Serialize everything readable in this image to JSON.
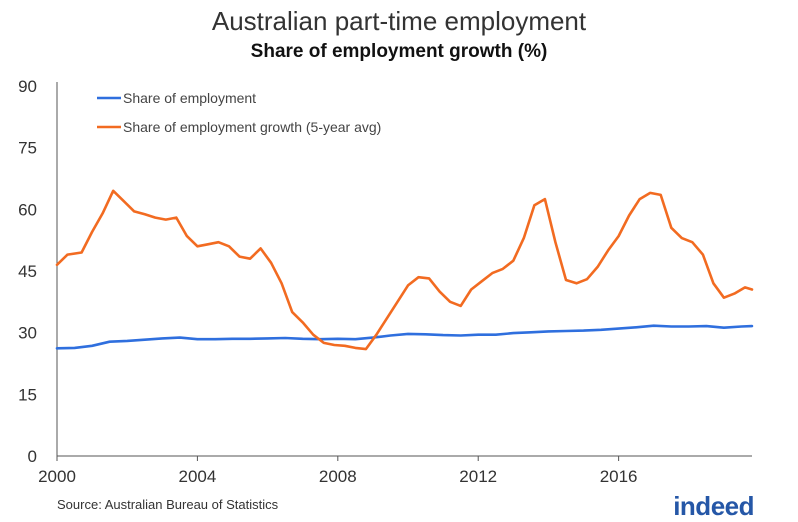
{
  "chart_data": {
    "type": "line",
    "title": "Australian part-time employment",
    "subtitle": "Share of employment growth (%)",
    "xlabel": "",
    "ylabel": "",
    "xlim": [
      2000,
      2019.8
    ],
    "ylim": [
      0,
      90
    ],
    "x_ticks": [
      2000,
      2004,
      2008,
      2012,
      2016
    ],
    "x_tick_labels": [
      "2000",
      "2004",
      "2008",
      "2012",
      "2016"
    ],
    "y_ticks": [
      0,
      15,
      30,
      45,
      60,
      75,
      90
    ],
    "y_tick_labels": [
      "0",
      "15",
      "30",
      "45",
      "60",
      "75",
      "90"
    ],
    "grid": false,
    "legend_position": "top-left",
    "series": [
      {
        "name": "Share of employment",
        "color": "#2f6fde",
        "x": [
          2000,
          2000.5,
          2001,
          2001.5,
          2002,
          2002.5,
          2003,
          2003.5,
          2004,
          2004.5,
          2005,
          2005.5,
          2006,
          2006.5,
          2007,
          2007.5,
          2008,
          2008.5,
          2009,
          2009.5,
          2010,
          2010.5,
          2011,
          2011.5,
          2012,
          2012.5,
          2013,
          2013.5,
          2014,
          2014.5,
          2015,
          2015.5,
          2016,
          2016.5,
          2017,
          2017.5,
          2018,
          2018.5,
          2019,
          2019.5,
          2019.8
        ],
        "values": [
          26.2,
          26.3,
          26.8,
          27.8,
          28.0,
          28.3,
          28.6,
          28.8,
          28.4,
          28.4,
          28.5,
          28.5,
          28.6,
          28.7,
          28.5,
          28.4,
          28.5,
          28.4,
          28.8,
          29.3,
          29.7,
          29.6,
          29.4,
          29.3,
          29.5,
          29.5,
          29.9,
          30.1,
          30.3,
          30.4,
          30.5,
          30.7,
          31.0,
          31.3,
          31.7,
          31.5,
          31.5,
          31.6,
          31.2,
          31.5,
          31.6
        ]
      },
      {
        "name": "Share of employment growth (5-year avg)",
        "color": "#f26b21",
        "x": [
          2000,
          2000.3,
          2000.7,
          2001,
          2001.3,
          2001.6,
          2001.9,
          2002.2,
          2002.5,
          2002.8,
          2003.1,
          2003.4,
          2003.7,
          2004,
          2004.3,
          2004.6,
          2004.9,
          2005.2,
          2005.5,
          2005.8,
          2006.1,
          2006.4,
          2006.7,
          2007,
          2007.3,
          2007.6,
          2007.9,
          2008.2,
          2008.5,
          2008.8,
          2009.1,
          2009.4,
          2009.7,
          2010,
          2010.3,
          2010.6,
          2010.9,
          2011.2,
          2011.5,
          2011.8,
          2012.1,
          2012.4,
          2012.7,
          2013,
          2013.3,
          2013.6,
          2013.9,
          2014.2,
          2014.5,
          2014.8,
          2015.1,
          2015.4,
          2015.7,
          2016,
          2016.3,
          2016.6,
          2016.9,
          2017.2,
          2017.5,
          2017.8,
          2018.1,
          2018.4,
          2018.7,
          2019,
          2019.3,
          2019.6,
          2019.8
        ],
        "values": [
          46.5,
          49.0,
          49.5,
          54.5,
          59.0,
          64.5,
          62.0,
          59.5,
          58.8,
          58.0,
          57.5,
          58.0,
          53.5,
          51.0,
          51.5,
          52.0,
          51.0,
          48.5,
          48.0,
          50.5,
          47.0,
          42.0,
          35.0,
          32.5,
          29.5,
          27.5,
          27.0,
          26.8,
          26.3,
          26.0,
          29.5,
          33.5,
          37.5,
          41.5,
          43.5,
          43.2,
          40.0,
          37.5,
          36.5,
          40.5,
          42.5,
          44.5,
          45.5,
          47.5,
          53.0,
          61.0,
          62.5,
          52.0,
          42.8,
          42.0,
          43.0,
          46.0,
          50.0,
          53.5,
          58.5,
          62.5,
          64.0,
          63.5,
          55.5,
          53.0,
          52.0,
          49.0,
          42.0,
          38.5,
          39.5,
          41.0,
          40.5
        ]
      }
    ],
    "source": "Source: Australian Bureau of Statistics",
    "logo_text": "indeed"
  }
}
